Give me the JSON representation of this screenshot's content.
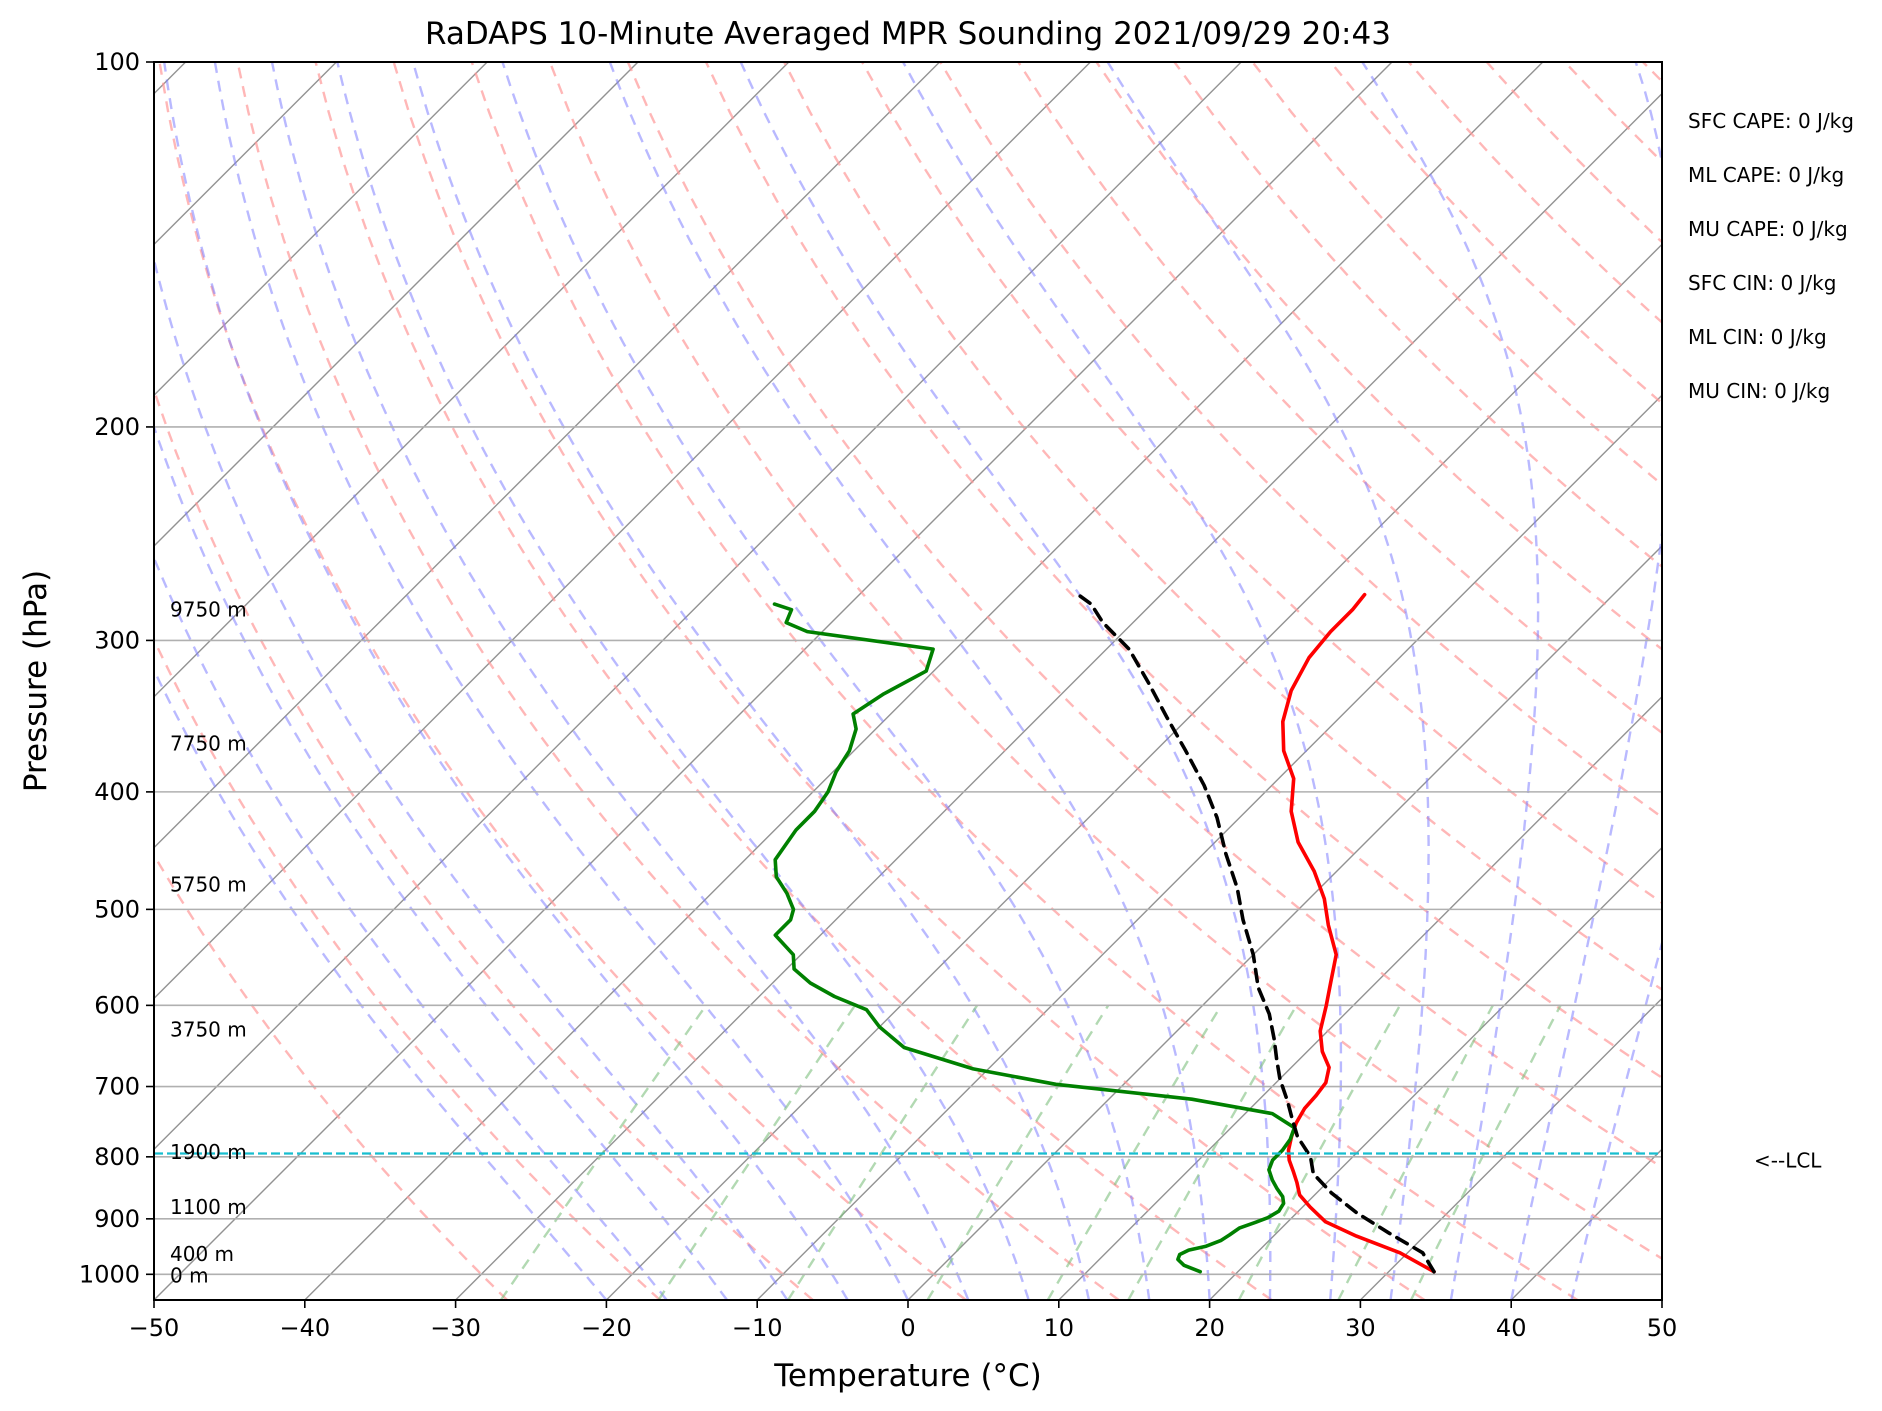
{
  "chart_data": {
    "type": "line",
    "title": "RaDAPS 10-Minute Averaged MPR Sounding 2021/09/29 20:43",
    "xlabel": "Temperature (°C)",
    "ylabel": "Pressure (hPa)",
    "xlim": [
      -50,
      50
    ],
    "ylim": [
      1050,
      100
    ],
    "y_scale": "log",
    "grid": true,
    "x_ticks": [
      {
        "value": -50,
        "label": "−50"
      },
      {
        "value": -40,
        "label": "−40"
      },
      {
        "value": -30,
        "label": "−30"
      },
      {
        "value": -20,
        "label": "−20"
      },
      {
        "value": -10,
        "label": "−10"
      },
      {
        "value": 0,
        "label": "0"
      },
      {
        "value": 10,
        "label": "10"
      },
      {
        "value": 20,
        "label": "20"
      },
      {
        "value": 30,
        "label": "30"
      },
      {
        "value": 40,
        "label": "40"
      },
      {
        "value": 50,
        "label": "50"
      }
    ],
    "y_ticks": [
      {
        "value": 100,
        "label": "100"
      },
      {
        "value": 200,
        "label": "200"
      },
      {
        "value": 300,
        "label": "300"
      },
      {
        "value": 400,
        "label": "400"
      },
      {
        "value": 500,
        "label": "500"
      },
      {
        "value": 600,
        "label": "600"
      },
      {
        "value": 700,
        "label": "700"
      },
      {
        "value": 800,
        "label": "800"
      },
      {
        "value": 900,
        "label": "900"
      },
      {
        "value": 1000,
        "label": "1000"
      }
    ],
    "series": [
      {
        "role": "temperature",
        "color": "#ff0000",
        "style": "solid",
        "points": [
          [
            33.0,
            995
          ],
          [
            29.5,
            960
          ],
          [
            25.5,
            930
          ],
          [
            22.5,
            905
          ],
          [
            20.5,
            880
          ],
          [
            19.0,
            860
          ],
          [
            18.0,
            840
          ],
          [
            17.0,
            822
          ],
          [
            16.0,
            805
          ],
          [
            15.3,
            790
          ],
          [
            14.6,
            770
          ],
          [
            14.0,
            750
          ],
          [
            13.6,
            730
          ],
          [
            13.5,
            712
          ],
          [
            13.3,
            695
          ],
          [
            12.5,
            675
          ],
          [
            11.0,
            655
          ],
          [
            9.5,
            630
          ],
          [
            8.2,
            600
          ],
          [
            7.0,
            575
          ],
          [
            5.5,
            545
          ],
          [
            3.0,
            515
          ],
          [
            1.0,
            490
          ],
          [
            -1.5,
            465
          ],
          [
            -4.5,
            440
          ],
          [
            -7.0,
            415
          ],
          [
            -9.0,
            390
          ],
          [
            -11.5,
            370
          ],
          [
            -13.5,
            350
          ],
          [
            -15.0,
            330
          ],
          [
            -16.0,
            310
          ],
          [
            -16.3,
            295
          ],
          [
            -16.3,
            283
          ],
          [
            -16.5,
            275
          ]
        ]
      },
      {
        "role": "dewpoint",
        "color": "#008000",
        "style": "solid",
        "points": [
          [
            17.5,
            995
          ],
          [
            16.0,
            983
          ],
          [
            15.2,
            972
          ],
          [
            15.0,
            963
          ],
          [
            15.3,
            955
          ],
          [
            16.2,
            948
          ],
          [
            16.8,
            938
          ],
          [
            17.0,
            928
          ],
          [
            17.2,
            916
          ],
          [
            17.9,
            906
          ],
          [
            18.4,
            898
          ],
          [
            18.7,
            887
          ],
          [
            18.5,
            874
          ],
          [
            18.0,
            863
          ],
          [
            17.1,
            850
          ],
          [
            16.2,
            836
          ],
          [
            15.3,
            820
          ],
          [
            14.9,
            805
          ],
          [
            14.9,
            790
          ],
          [
            14.7,
            774
          ],
          [
            14.2,
            757
          ],
          [
            11.8,
            737
          ],
          [
            5.5,
            717
          ],
          [
            -4.5,
            697
          ],
          [
            -11.0,
            677
          ],
          [
            -17.0,
            650
          ],
          [
            -20.0,
            625
          ],
          [
            -22.0,
            605
          ],
          [
            -25.0,
            590
          ],
          [
            -27.5,
            575
          ],
          [
            -29.5,
            560
          ],
          [
            -30.5,
            545
          ],
          [
            -33.0,
            525
          ],
          [
            -33.0,
            510
          ],
          [
            -33.5,
            500
          ],
          [
            -35.0,
            485
          ],
          [
            -36.8,
            470
          ],
          [
            -38.0,
            455
          ],
          [
            -38.6,
            430
          ],
          [
            -38.6,
            415
          ],
          [
            -39.0,
            400
          ],
          [
            -39.8,
            385
          ],
          [
            -40.3,
            370
          ],
          [
            -41.3,
            355
          ],
          [
            -42.5,
            345
          ],
          [
            -41.8,
            332
          ],
          [
            -40.5,
            318
          ],
          [
            -41.5,
            305
          ],
          [
            -51.0,
            295
          ],
          [
            -53.0,
            290
          ],
          [
            -53.5,
            283
          ],
          [
            -55.0,
            280
          ]
        ]
      },
      {
        "role": "parcel-path",
        "color": "#000000",
        "style": "dashed",
        "points": [
          [
            33.0,
            995
          ],
          [
            31.0,
            960
          ],
          [
            27.5,
            925
          ],
          [
            24.0,
            890
          ],
          [
            21.0,
            857
          ],
          [
            18.5,
            826
          ],
          [
            17.2,
            800
          ],
          [
            15.0,
            770
          ],
          [
            13.5,
            745
          ],
          [
            12.0,
            720
          ],
          [
            10.0,
            690
          ],
          [
            8.5,
            665
          ],
          [
            7.0,
            640
          ],
          [
            5.0,
            610
          ],
          [
            2.5,
            580
          ],
          [
            0.0,
            545
          ],
          [
            -3.0,
            510
          ],
          [
            -5.5,
            480
          ],
          [
            -8.5,
            450
          ],
          [
            -11.5,
            420
          ],
          [
            -14.5,
            395
          ],
          [
            -18.0,
            370
          ],
          [
            -21.5,
            347
          ],
          [
            -25.0,
            325
          ],
          [
            -28.5,
            305
          ],
          [
            -32.0,
            290
          ],
          [
            -34.0,
            280
          ],
          [
            -35.5,
            275
          ]
        ]
      }
    ],
    "height_labels": [
      {
        "pressure": 283,
        "label": "9750 m"
      },
      {
        "pressure": 365,
        "label": "7750 m"
      },
      {
        "pressure": 477,
        "label": "5750 m"
      },
      {
        "pressure": 628,
        "label": "3750 m"
      },
      {
        "pressure": 793,
        "label": "1900 m"
      },
      {
        "pressure": 880,
        "label": "1100 m"
      },
      {
        "pressure": 962,
        "label": "400 m"
      },
      {
        "pressure": 1002,
        "label": "0 m"
      }
    ],
    "lcl": {
      "pressure": 795,
      "label": "<--LCL",
      "color": "#17becf"
    },
    "indices": [
      "SFC CAPE: 0 J/kg",
      "ML CAPE: 0 J/kg",
      "MU CAPE: 0 J/kg",
      "SFC CIN: 0 J/kg",
      "ML CIN: 0 J/kg",
      "MU CIN: 0 J/kg"
    ],
    "background_lines": {
      "isotherm_color": "#808080",
      "dry_adiabat_color": "#ff9999",
      "moist_adiabat_color": "#8080ff",
      "mixing_ratio_color": "#7fbf7f"
    }
  }
}
